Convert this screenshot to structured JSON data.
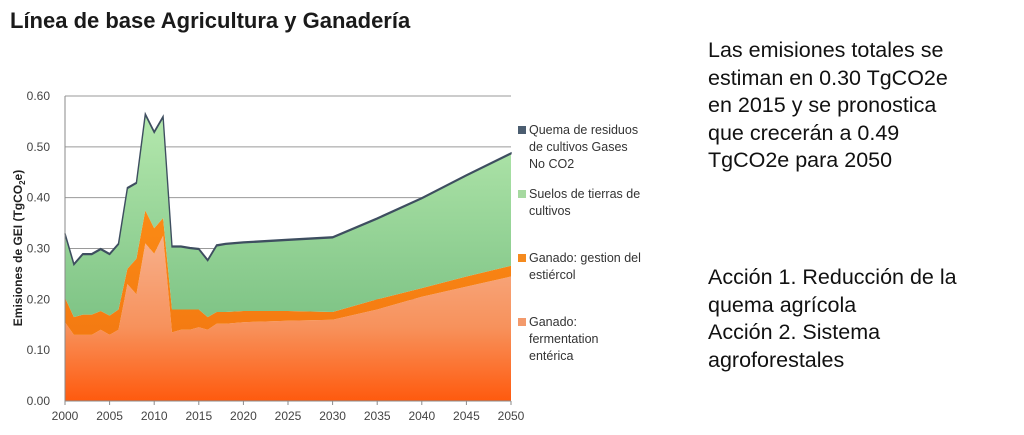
{
  "slide": {
    "title": "Línea de base Agricultura y Ganadería",
    "summary_lines": [
      "Las emisiones totales se",
      "estiman en 0.30 TgCO2e",
      "en 2015 y se pronostica",
      "que crecerán a 0.49",
      "TgCO2e para 2050"
    ],
    "action_lines": [
      "Acción 1. Reducción de la",
      "quema agrícola",
      "Acción 2. Sistema",
      "agroforestales"
    ]
  },
  "chart_data": {
    "type": "area",
    "stacked": true,
    "title": "",
    "xlabel": "",
    "ylabel": "Emisiones de GEI (TgCO2e)",
    "ylabel_parts": {
      "main": "Emisiones de GEI (TgCO",
      "sub": "2",
      "tail": "e)"
    },
    "xlim": [
      2000,
      2050
    ],
    "ylim": [
      0,
      0.6
    ],
    "x_ticks": [
      "2000",
      "2005",
      "2010",
      "2015",
      "2020",
      "2025",
      "2030",
      "2035",
      "2040",
      "2045",
      "2050"
    ],
    "y_ticks": [
      "0.00",
      "0.10",
      "0.20",
      "0.30",
      "0.40",
      "0.50",
      "0.60"
    ],
    "grid": "horizontal",
    "legend_position": "right",
    "x": [
      2000,
      2001,
      2002,
      2003,
      2004,
      2005,
      2006,
      2007,
      2008,
      2009,
      2010,
      2011,
      2012,
      2013,
      2014,
      2015,
      2016,
      2017,
      2018,
      2020,
      2025,
      2030,
      2035,
      2040,
      2045,
      2050
    ],
    "series": [
      {
        "name": "Ganado: fermentation entérica",
        "legend_lines": [
          "Ganado:",
          "fermentation",
          "entérica"
        ],
        "color": "#f39a6c",
        "values": [
          0.155,
          0.13,
          0.13,
          0.13,
          0.14,
          0.13,
          0.14,
          0.23,
          0.21,
          0.31,
          0.29,
          0.325,
          0.135,
          0.14,
          0.14,
          0.145,
          0.14,
          0.152,
          0.152,
          0.155,
          0.158,
          0.16,
          0.18,
          0.205,
          0.225,
          0.245
        ]
      },
      {
        "name": "Ganado: gestion del estiércol",
        "legend_lines": [
          "Ganado: gestion del",
          "estiércol"
        ],
        "color": "#f58a1e",
        "values": [
          0.048,
          0.035,
          0.04,
          0.04,
          0.037,
          0.038,
          0.04,
          0.03,
          0.07,
          0.065,
          0.05,
          0.035,
          0.045,
          0.04,
          0.04,
          0.035,
          0.025,
          0.023,
          0.023,
          0.022,
          0.019,
          0.015,
          0.02,
          0.017,
          0.02,
          0.021
        ]
      },
      {
        "name": "Suelos de tierras de cultivos",
        "legend_lines": [
          "Suelos de tierras de",
          "cultivos"
        ],
        "color": "#9bd597",
        "values": [
          0.125,
          0.103,
          0.118,
          0.118,
          0.121,
          0.12,
          0.128,
          0.158,
          0.148,
          0.188,
          0.188,
          0.198,
          0.123,
          0.123,
          0.12,
          0.118,
          0.111,
          0.13,
          0.133,
          0.134,
          0.139,
          0.146,
          0.158,
          0.176,
          0.198,
          0.22
        ]
      },
      {
        "name": "Quema de residuos de cultivos Gases No CO2",
        "legend_lines": [
          "Quema de residuos",
          "de cultivos Gases",
          "No CO2"
        ],
        "color": "#4b5d70",
        "values": [
          0.002,
          0.002,
          0.002,
          0.002,
          0.002,
          0.002,
          0.002,
          0.002,
          0.002,
          0.002,
          0.002,
          0.002,
          0.002,
          0.002,
          0.002,
          0.002,
          0.002,
          0.002,
          0.002,
          0.002,
          0.002,
          0.002,
          0.002,
          0.002,
          0.002,
          0.002
        ]
      }
    ],
    "legend_order": [
      3,
      2,
      1,
      0
    ]
  }
}
